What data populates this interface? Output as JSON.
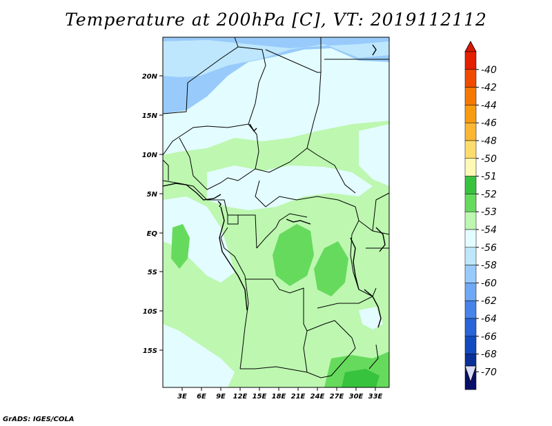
{
  "title": "Temperature at 200hPa [C], VT: 2019112112",
  "footer": "GrADS: IGES/COLA",
  "map": {
    "lat_labels": [
      "20N",
      "15N",
      "10N",
      "5N",
      "EQ",
      "5S",
      "10S",
      "15S"
    ],
    "lon_labels": [
      "3E",
      "6E",
      "9E",
      "12E",
      "15E",
      "18E",
      "21E",
      "24E",
      "27E",
      "30E",
      "33E"
    ]
  },
  "colorbar": {
    "labels": [
      "-40",
      "-42",
      "-44",
      "-46",
      "-48",
      "-50",
      "-51",
      "-52",
      "-53",
      "-54",
      "-56",
      "-58",
      "-60",
      "-62",
      "-64",
      "-66",
      "-68",
      "-70"
    ],
    "colors": [
      "#e52000",
      "#f04a00",
      "#f77800",
      "#f99b10",
      "#fbb634",
      "#fddc6e",
      "#fef9b4",
      "#38c33f",
      "#66da5d",
      "#bdf7b0",
      "#e3fcff",
      "#bee7fd",
      "#98cbfb",
      "#6fa8f4",
      "#4783e8",
      "#2965d9",
      "#124bc0",
      "#0a2f98",
      "#070f6a"
    ],
    "top_arrow_color": "#d81800",
    "bottom_arrow_color": "#dcdcf4"
  }
}
